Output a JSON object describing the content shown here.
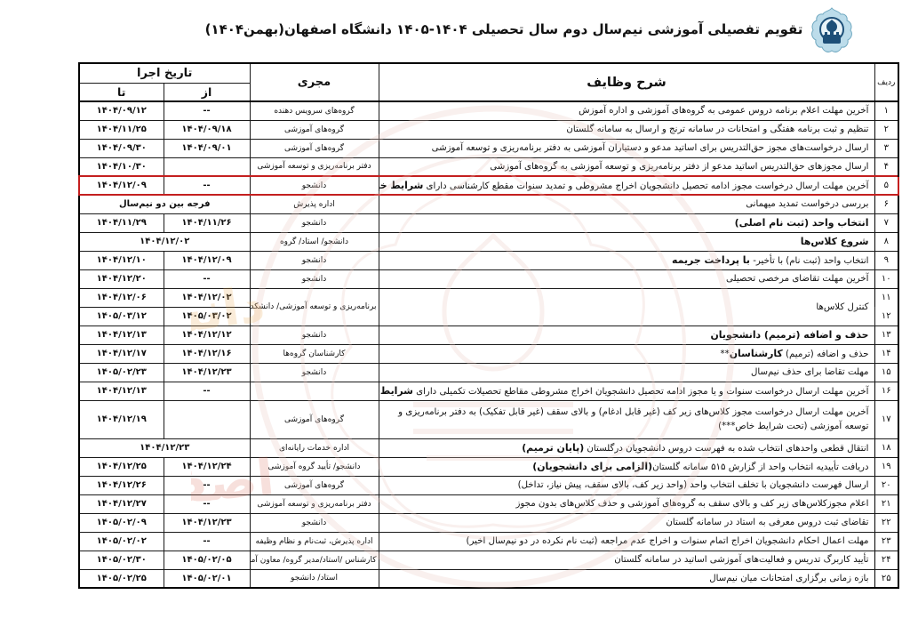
{
  "page": {
    "title": "تقویم تفصیلی آموزشی نیم‌سال دوم سال تحصیلی ۱۴۰۴-۱۴۰۵ دانشگاه اصفهان(بهمن۱۴۰۴)",
    "logo_alt": "آرم دانشگاه اصفهان",
    "colors": {
      "highlight_border": "#c41f1f",
      "logo_light_blue": "#bcdcea",
      "logo_dark_blue": "#1d4f78",
      "watermark_pink": "#e9c9c1",
      "watermark_orange": "#e8a34a",
      "watermark_red": "#d96a5a"
    }
  },
  "table": {
    "headers": {
      "row_no": "ردیف",
      "tasks": "شرح وظایف",
      "executor": "مجری",
      "date_group": "تاریخ اجرا",
      "from": "از",
      "to": "تا"
    },
    "rows": [
      {
        "no": "۱",
        "task": [
          {
            "text": "آخرین مهلت اعلام برنامه دروس عمومی به گروه‌های آموزشی و اداره آموزش",
            "bold": false
          }
        ],
        "exec": "گروه‌های سرویس دهنده",
        "from": "--",
        "to": "۱۴۰۴/۰۹/۱۲"
      },
      {
        "no": "۲",
        "task": [
          {
            "text": "تنظیم و ثبت برنامه هفتگی و امتحانات در سامانه ترنج و ارسال به سامانه گلستان",
            "bold": false
          }
        ],
        "exec": "گروه‌های آموزشی",
        "from": "۱۴۰۴/۰۹/۱۸",
        "to": "۱۴۰۴/۱۱/۲۵"
      },
      {
        "no": "۳",
        "task": [
          {
            "text": "ارسال درخواست‌های مجوز حق‌التدریس برای اساتید مدعو و دستیاران آموزشی به دفتر برنامه‌ریزی و توسعه آموزشی",
            "bold": false
          }
        ],
        "exec": "گروه‌های آموزشی",
        "from": "۱۴۰۴/۰۹/۰۱",
        "to": "۱۴۰۴/۰۹/۳۰"
      },
      {
        "no": "۴",
        "task": [
          {
            "text": "ارسال مجوزهای حق‌التدریس اساتید مدعو از دفتر برنامه‌ریزی و توسعه آموزشی به گروه‌های آموزشی",
            "bold": false
          }
        ],
        "exec": "دفتر برنامه‌ریزی و توسعه آموزشی",
        "from": "",
        "to": "۱۴۰۴/۱۰/۳۰"
      },
      {
        "no": "۵",
        "highlight": true,
        "task": [
          {
            "text": "آخرین مهلت ارسال درخواست مجوز ادامه تحصیل دانشجویان اخراج مشروطی و تمدید سنوات مقطع کارشناسی دارای ",
            "bold": false
          },
          {
            "text": "شرایط خاص*",
            "bold": true
          }
        ],
        "exec": "دانشجو",
        "from": "--",
        "to": "۱۴۰۴/۱۲/۰۹"
      },
      {
        "no": "۶",
        "task": [
          {
            "text": "بررسی درخواست تمدید میهمانی",
            "bold": false
          }
        ],
        "exec": "اداره پذیرش",
        "merged": {
          "text": "فرجه بین دو نیم‌سال",
          "bold": true,
          "numeric": false
        }
      },
      {
        "no": "۷",
        "task": [
          {
            "text": "انتخاب واحد (ثبت نام اصلی)",
            "bold": true
          }
        ],
        "exec": "دانشجو",
        "from": "۱۴۰۴/۱۱/۲۶",
        "to": "۱۴۰۴/۱۱/۲۹"
      },
      {
        "no": "۸",
        "task": [
          {
            "text": "شروع کلاس‌ها",
            "bold": true
          }
        ],
        "exec": "دانشجو/ استاد/ گروه",
        "merged": {
          "text": "۱۴۰۴/۱۲/۰۲",
          "bold": true,
          "numeric": true
        }
      },
      {
        "no": "۹",
        "task": [
          {
            "text": "انتخاب واحد (ثبت نام) با تأخیر- ",
            "bold": false
          },
          {
            "text": "با پرداخت جریمه",
            "bold": true
          }
        ],
        "exec": "دانشجو",
        "from": "۱۴۰۴/۱۲/۰۹",
        "to": "۱۴۰۴/۱۲/۱۰"
      },
      {
        "no": "۱۰",
        "task": [
          {
            "text": "آخرین مهلت تقاضای مرخصی تحصیلی",
            "bold": false
          }
        ],
        "exec": "دانشجو",
        "from": "--",
        "to": "۱۴۰۴/۱۲/۲۰"
      },
      {
        "no": "۱۱",
        "span": "start",
        "task": [
          {
            "text": "کنترل کلاس‌ها",
            "bold": false
          }
        ],
        "exec": "برنامه‌ریزی و توسعه آموزشی/ دانشکده‌ها",
        "from": "۱۴۰۴/۱۲/۰۲",
        "to": "۱۴۰۴/۱۲/۰۶"
      },
      {
        "no": "۱۲",
        "span": "end",
        "from": "۱۴۰۵/۰۳/۰۲",
        "to": "۱۴۰۵/۰۳/۱۲"
      },
      {
        "no": "۱۳",
        "task": [
          {
            "text": "حذف و اضافه (ترمیم) دانشجویان",
            "bold": true
          }
        ],
        "exec": "دانشجو",
        "from": "۱۴۰۴/۱۲/۱۲",
        "to": "۱۴۰۴/۱۲/۱۳"
      },
      {
        "no": "۱۴",
        "task": [
          {
            "text": "حذف و اضافه (ترمیم) ",
            "bold": false
          },
          {
            "text": "کارشناسان",
            "bold": true
          },
          {
            "text": "**",
            "bold": false
          }
        ],
        "exec": "کارشناسان گروه‌ها",
        "from": "۱۴۰۴/۱۲/۱۶",
        "to": "۱۴۰۴/۱۲/۱۷"
      },
      {
        "no": "۱۵",
        "task": [
          {
            "text": "مهلت تقاضا برای حذف نیم‌سال",
            "bold": false
          }
        ],
        "exec": "دانشجو",
        "from": "۱۴۰۴/۱۲/۲۳",
        "to": "۱۴۰۵/۰۲/۲۳"
      },
      {
        "no": "۱۶",
        "task": [
          {
            "text": "آخرین مهلت ارسال درخواست سنوات و یا مجوز ادامه تحصیل دانشجویان اخراج مشروطی مقاطع تحصیلات تکمیلی دارای ",
            "bold": false
          },
          {
            "text": "شرایط خاص*",
            "bold": true
          }
        ],
        "exec": "",
        "from": "--",
        "to": "۱۴۰۴/۱۲/۱۳"
      },
      {
        "no": "۱۷",
        "tall": true,
        "task": [
          {
            "text": "آخرین مهلت ارسال درخواست مجوز کلاس‌های زیر کف (غیر قابل ادغام) و بالای سقف (غیر قابل تفکیک) به دفتر برنامه‌ریزی و توسعه آموزشی (تحت شرایط خاص***)",
            "bold": false
          }
        ],
        "exec": "گروه‌های آموزشی",
        "from": "",
        "to": "۱۴۰۴/۱۲/۱۹"
      },
      {
        "no": "۱۸",
        "task": [
          {
            "text": "انتقال قطعی واحدهای انتخاب شده به فهرست دروس دانشجویان درگلستان ",
            "bold": false
          },
          {
            "text": "(پایان ترمیم)",
            "bold": true
          }
        ],
        "exec": "اداره خدمات رایانه‌ای",
        "merged": {
          "text": "۱۴۰۴/۱۲/۲۳",
          "bold": true,
          "numeric": true
        }
      },
      {
        "no": "۱۹",
        "task": [
          {
            "text": "دریافت تأییدیه انتخاب واحد از گزارش ۵۱۵ سامانه گلستان",
            "bold": false
          },
          {
            "text": "(الزامی برای دانشجویان)",
            "bold": true
          }
        ],
        "exec": "دانشجو/ تأیید گروه آموزشی",
        "from": "۱۴۰۴/۱۲/۲۴",
        "to": "۱۴۰۴/۱۲/۲۵"
      },
      {
        "no": "۲۰",
        "task": [
          {
            "text": "ارسال فهرست دانشجویان با تخلف انتخاب واحد (واحد زیر کف، بالای سقف، پیش نیاز، تداخل)",
            "bold": false
          }
        ],
        "exec": "گروه‌های آموزشی",
        "from": "--",
        "to": "۱۴۰۴/۱۲/۲۶"
      },
      {
        "no": "۲۱",
        "task": [
          {
            "text": "اعلام مجوزکلاس‌های زیر کف و بالای سقف به گروه‌های آموزشی و حذف کلاس‌های بدون مجوز",
            "bold": false
          }
        ],
        "exec": "دفتر برنامه‌ریزی و توسعه آموزشی",
        "from": "--",
        "to": "۱۴۰۴/۱۲/۲۷"
      },
      {
        "no": "۲۲",
        "task": [
          {
            "text": "تقاضای ثبت دروس معرفی به استاد در سامانه گلستان",
            "bold": false
          }
        ],
        "exec": "دانشجو",
        "from": "۱۴۰۴/۱۲/۲۳",
        "to": "۱۴۰۵/۰۲/۰۹"
      },
      {
        "no": "۲۳",
        "task": [
          {
            "text": "مهلت اعمال احکام دانشجویان اخراج اتمام سنوات و اخراج عدم مراجعه (ثبت نام نکرده در دو نیم‌سال اخیر)",
            "bold": false
          }
        ],
        "exec": "اداره پذیرش، ثبت‌نام و نظام وظیفه",
        "from": "--",
        "to": "۱۴۰۵/۰۲/۰۲"
      },
      {
        "no": "۲۴",
        "task": [
          {
            "text": "تأیید کاربرگ تدریس و فعالیت‌های آموزشی اساتید در سامانه گلستان",
            "bold": false
          }
        ],
        "exec": "کارشناس /استاد/مدیر گروه/ معاون آموزشی",
        "from": "۱۴۰۵/۰۲/۰۵",
        "to": "۱۴۰۵/۰۲/۳۰"
      },
      {
        "no": "۲۵",
        "task": [
          {
            "text": "بازه زمانی برگزاری امتحانات میان نیم‌سال",
            "bold": false
          }
        ],
        "exec": "استاد/ دانشجو",
        "from": "۱۴۰۵/۰۲/۰۱",
        "to": "۱۴۰۵/۰۲/۲۵"
      }
    ]
  }
}
